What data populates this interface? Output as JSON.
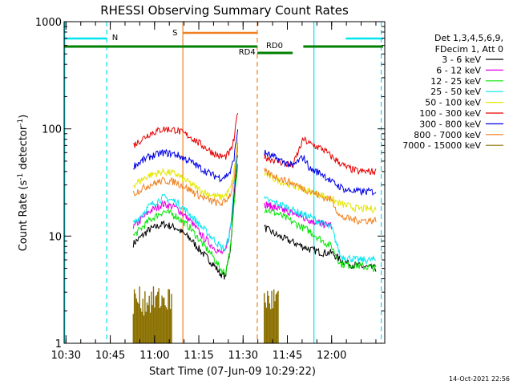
{
  "chart_data": {
    "type": "line",
    "title": "RHESSI Observing Summary Count Rates",
    "xlabel": "Start Time (07-Jun-09 10:29:22)",
    "ylabel": "Count Rate (s⁻¹ detector⁻¹)",
    "ylabel_main": "Count Rate (s",
    "ylabel_sup1": "-1",
    "ylabel_mid": " detector",
    "ylabel_sup2": "-1",
    "ylabel_end": ")",
    "y_scale": "log",
    "ylim": [
      1,
      1000
    ],
    "y_ticks": [
      {
        "v": 1,
        "label": "1"
      },
      {
        "v": 10,
        "label": "10"
      },
      {
        "v": 100,
        "label": "100"
      },
      {
        "v": 1000,
        "label": "1000"
      }
    ],
    "xlim": [
      10.4894,
      12.3
    ],
    "x_ticks": [
      {
        "v": 10.5,
        "label": "10:30"
      },
      {
        "v": 10.75,
        "label": "10:45"
      },
      {
        "v": 11.0,
        "label": "11:00"
      },
      {
        "v": 11.25,
        "label": "11:15"
      },
      {
        "v": 11.5,
        "label": "11:30"
      },
      {
        "v": 11.75,
        "label": "11:45"
      },
      {
        "v": 12.0,
        "label": "12:00"
      }
    ],
    "legend_header": [
      "Det 1,3,4,5,6,9,",
      "FDecim 1, Att 0"
    ],
    "timestamp": "14-Oct-2021 22:56",
    "annotations": [
      {
        "id": "N",
        "label": "N",
        "color": "#00e5ee",
        "segments": [
          [
            10.49,
            10.73
          ],
          [
            12.08,
            12.29
          ]
        ]
      },
      {
        "id": "S",
        "label": "S",
        "color": "#f08020",
        "segments": [
          [
            11.16,
            11.58
          ]
        ]
      },
      {
        "id": "RD4",
        "label": "RD4",
        "color": "#008000",
        "segments": [
          [
            10.49,
            11.58
          ],
          [
            11.58,
            11.78
          ],
          [
            11.84,
            12.29
          ]
        ]
      },
      {
        "id": "RD0",
        "label": "RD0",
        "color": "#008000",
        "segments": [
          [
            11.58,
            11.78
          ]
        ]
      }
    ],
    "vertical_lines": [
      {
        "x": 10.493,
        "color": "#00e5ee",
        "style": "solid"
      },
      {
        "x": 10.73,
        "color": "#00e5ee",
        "style": "dashed"
      },
      {
        "x": 11.16,
        "color": "#f08020",
        "style": "solid"
      },
      {
        "x": 11.58,
        "color": "#f08020",
        "style": "dashed"
      },
      {
        "x": 11.9,
        "color": "#00e5ee",
        "style": "solid"
      },
      {
        "x": 12.28,
        "color": "#00e5ee",
        "style": "dashed"
      }
    ],
    "segments": {
      "a": [
        10.88,
        11.17
      ],
      "b": [
        11.62,
        12.25
      ]
    },
    "series": [
      {
        "name": "3 - 6 keV",
        "color": "#000000",
        "a": [
          [
            10.88,
            8.5
          ],
          [
            10.97,
            11.5
          ],
          [
            11.05,
            13
          ],
          [
            11.12,
            12
          ],
          [
            11.2,
            9.5
          ],
          [
            11.27,
            7
          ],
          [
            11.33,
            5.5
          ],
          [
            11.37,
            4.5
          ],
          [
            11.4,
            4.2
          ],
          [
            11.43,
            8
          ],
          [
            11.45,
            25
          ],
          [
            11.47,
            60
          ]
        ],
        "b": [
          [
            11.62,
            12
          ],
          [
            11.7,
            10
          ],
          [
            11.8,
            8.5
          ],
          [
            11.88,
            7.5
          ],
          [
            11.95,
            7
          ],
          [
            12.0,
            7
          ],
          [
            12.05,
            6
          ],
          [
            12.1,
            5.5
          ],
          [
            12.17,
            5.2
          ],
          [
            12.25,
            5
          ]
        ]
      },
      {
        "name": "6 - 12 keV",
        "color": "#e600e6",
        "a": [
          [
            10.88,
            12
          ],
          [
            10.97,
            17
          ],
          [
            11.05,
            20
          ],
          [
            11.12,
            18.5
          ],
          [
            11.2,
            14
          ],
          [
            11.27,
            10
          ],
          [
            11.33,
            8
          ],
          [
            11.37,
            7
          ],
          [
            11.4,
            7
          ],
          [
            11.43,
            12
          ],
          [
            11.45,
            30
          ],
          [
            11.47,
            70
          ]
        ],
        "b": [
          [
            11.62,
            20
          ],
          [
            11.7,
            18
          ],
          [
            11.8,
            16
          ],
          [
            11.88,
            14
          ],
          [
            11.95,
            13
          ],
          [
            12.0,
            12.5
          ]
        ]
      },
      {
        "name": "12 - 25 keV",
        "color": "#00e600",
        "a": [
          [
            10.88,
            10
          ],
          [
            10.97,
            14
          ],
          [
            11.05,
            17
          ],
          [
            11.12,
            15.5
          ],
          [
            11.2,
            12
          ],
          [
            11.27,
            8.5
          ],
          [
            11.33,
            6.5
          ],
          [
            11.37,
            5
          ],
          [
            11.4,
            4.5
          ],
          [
            11.43,
            8
          ],
          [
            11.45,
            20
          ],
          [
            11.47,
            50
          ]
        ],
        "b": [
          [
            11.62,
            18
          ],
          [
            11.7,
            16
          ],
          [
            11.8,
            13
          ],
          [
            11.88,
            11
          ],
          [
            11.95,
            9
          ],
          [
            12.0,
            8
          ],
          [
            12.05,
            5.5
          ],
          [
            12.15,
            5.3
          ],
          [
            12.25,
            5
          ]
        ]
      },
      {
        "name": "25 - 50 keV",
        "color": "#00e5ee",
        "a": [
          [
            10.88,
            13
          ],
          [
            10.97,
            19
          ],
          [
            11.05,
            23
          ],
          [
            11.12,
            21
          ],
          [
            11.2,
            16
          ],
          [
            11.27,
            12
          ],
          [
            11.33,
            9.5
          ],
          [
            11.37,
            8
          ],
          [
            11.4,
            7.5
          ],
          [
            11.43,
            12
          ],
          [
            11.45,
            30
          ],
          [
            11.47,
            70
          ]
        ],
        "b": [
          [
            11.62,
            22
          ],
          [
            11.7,
            20
          ],
          [
            11.8,
            17
          ],
          [
            11.88,
            15
          ],
          [
            11.95,
            13
          ],
          [
            12.0,
            12
          ],
          [
            12.05,
            6.5
          ],
          [
            12.15,
            6
          ],
          [
            12.25,
            6
          ]
        ]
      },
      {
        "name": "50 - 100 keV",
        "color": "#e6e600",
        "a": [
          [
            10.88,
            30
          ],
          [
            10.97,
            37
          ],
          [
            11.05,
            40
          ],
          [
            11.12,
            38
          ],
          [
            11.2,
            31
          ],
          [
            11.27,
            26
          ],
          [
            11.33,
            24
          ],
          [
            11.37,
            23
          ],
          [
            11.4,
            24
          ],
          [
            11.43,
            28
          ],
          [
            11.45,
            40
          ],
          [
            11.47,
            80
          ]
        ],
        "b": [
          [
            11.62,
            38
          ],
          [
            11.7,
            33
          ],
          [
            11.8,
            29
          ],
          [
            11.88,
            26
          ],
          [
            11.95,
            24
          ],
          [
            12.0,
            22
          ],
          [
            12.05,
            20
          ],
          [
            12.15,
            18
          ],
          [
            12.25,
            18
          ]
        ]
      },
      {
        "name": "100 - 300 keV",
        "color": "#e60000",
        "a": [
          [
            10.88,
            70
          ],
          [
            10.97,
            90
          ],
          [
            11.05,
            100
          ],
          [
            11.12,
            98
          ],
          [
            11.2,
            85
          ],
          [
            11.27,
            70
          ],
          [
            11.33,
            60
          ],
          [
            11.37,
            55
          ],
          [
            11.4,
            55
          ],
          [
            11.43,
            62
          ],
          [
            11.45,
            80
          ],
          [
            11.47,
            150
          ]
        ],
        "b": [
          [
            11.62,
            55
          ],
          [
            11.7,
            50
          ],
          [
            11.78,
            45
          ],
          [
            11.84,
            80
          ],
          [
            11.88,
            72
          ],
          [
            11.95,
            65
          ],
          [
            12.0,
            55
          ],
          [
            12.08,
            44
          ],
          [
            12.15,
            40
          ],
          [
            12.25,
            40
          ]
        ]
      },
      {
        "name": "300 - 800 keV",
        "color": "#0000e6",
        "a": [
          [
            10.88,
            45
          ],
          [
            10.97,
            55
          ],
          [
            11.05,
            60
          ],
          [
            11.12,
            58
          ],
          [
            11.2,
            50
          ],
          [
            11.27,
            42
          ],
          [
            11.33,
            37
          ],
          [
            11.37,
            35
          ],
          [
            11.4,
            36
          ],
          [
            11.43,
            40
          ],
          [
            11.45,
            55
          ],
          [
            11.47,
            100
          ]
        ],
        "b": [
          [
            11.62,
            60
          ],
          [
            11.7,
            52
          ],
          [
            11.78,
            45
          ],
          [
            11.84,
            55
          ],
          [
            11.88,
            42
          ],
          [
            11.95,
            38
          ],
          [
            12.0,
            32
          ],
          [
            12.08,
            27
          ],
          [
            12.15,
            26
          ],
          [
            12.25,
            26
          ]
        ]
      },
      {
        "name": "800 - 7000 keV",
        "color": "#f08020",
        "a": [
          [
            10.88,
            25
          ],
          [
            10.97,
            30
          ],
          [
            11.05,
            33
          ],
          [
            11.12,
            32
          ],
          [
            11.2,
            27
          ],
          [
            11.27,
            23
          ],
          [
            11.33,
            21
          ],
          [
            11.37,
            20
          ],
          [
            11.4,
            21
          ],
          [
            11.43,
            25
          ],
          [
            11.45,
            35
          ],
          [
            11.47,
            70
          ]
        ],
        "b": [
          [
            11.62,
            40
          ],
          [
            11.7,
            35
          ],
          [
            11.8,
            30
          ],
          [
            11.88,
            26
          ],
          [
            11.95,
            23
          ],
          [
            12.0,
            22
          ],
          [
            12.05,
            15
          ],
          [
            12.15,
            14
          ],
          [
            12.25,
            14
          ]
        ]
      },
      {
        "name": "7000 - 15000 keV",
        "color": "#8b7000",
        "a": [
          [
            10.88,
            1
          ],
          [
            11.0,
            1
          ],
          [
            11.1,
            1
          ]
        ],
        "b": [
          [
            11.62,
            1
          ],
          [
            11.7,
            1
          ]
        ]
      }
    ]
  }
}
